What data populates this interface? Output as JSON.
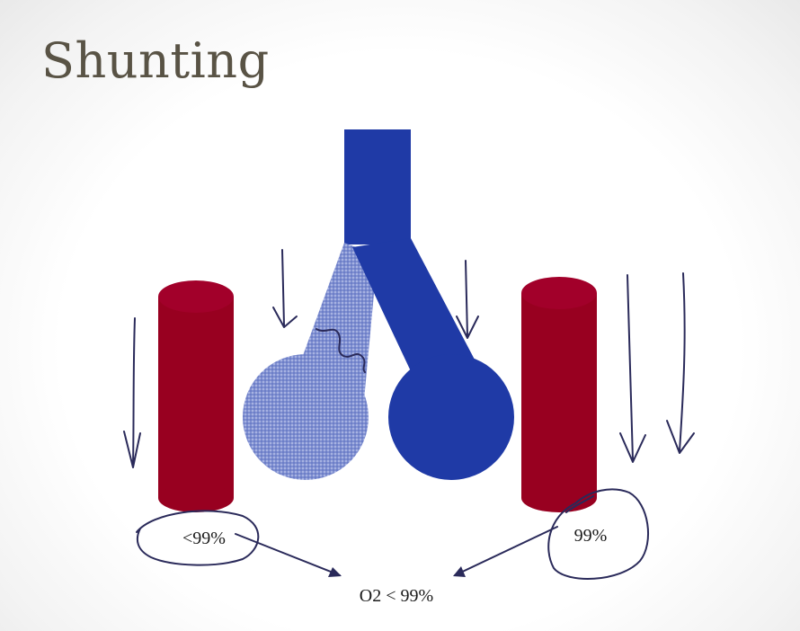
{
  "slide": {
    "title": "Shunting"
  },
  "labels": {
    "left_saturation": "<99%",
    "right_saturation": "99%",
    "result": "O2 < 99%"
  },
  "colors": {
    "title": "#595345",
    "airway_blue": "#1f3aa6",
    "blocked_airway": "#7f8fd0",
    "capillary_red": "#980020",
    "ink": "#2a2a5a"
  }
}
